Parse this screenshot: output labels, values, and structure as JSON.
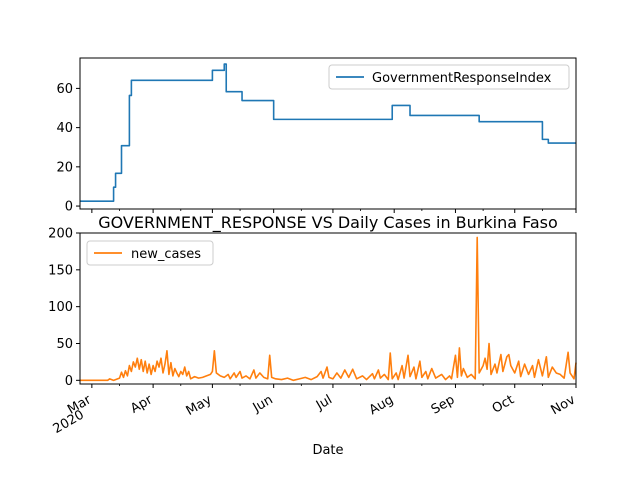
{
  "chart_data": [
    {
      "type": "line",
      "title": "",
      "xlabel": "",
      "ylabel": "",
      "x_range": [
        "2020-02-24",
        "2020-11-01"
      ],
      "ylim": [
        -1.5,
        75.5
      ],
      "yticks": [
        0,
        20,
        40,
        60
      ],
      "grid": false,
      "legend": "upper right",
      "series": [
        {
          "name": "GovernmentResponseIndex",
          "color": "#1f77b4",
          "step": true,
          "points": [
            [
              "2020-02-24",
              2.5
            ],
            [
              "2020-03-12",
              2.5
            ],
            [
              "2020-03-12",
              9.6
            ],
            [
              "2020-03-13",
              9.6
            ],
            [
              "2020-03-13",
              16.7
            ],
            [
              "2020-03-16",
              16.7
            ],
            [
              "2020-03-16",
              30.8
            ],
            [
              "2020-03-20",
              30.8
            ],
            [
              "2020-03-20",
              56.4
            ],
            [
              "2020-03-21",
              56.4
            ],
            [
              "2020-03-21",
              64.1
            ],
            [
              "2020-05-01",
              64.1
            ],
            [
              "2020-05-01",
              69.2
            ],
            [
              "2020-05-07",
              69.2
            ],
            [
              "2020-05-07",
              72.4
            ],
            [
              "2020-05-08",
              72.4
            ],
            [
              "2020-05-08",
              58.3
            ],
            [
              "2020-05-16",
              58.3
            ],
            [
              "2020-05-16",
              53.8
            ],
            [
              "2020-06-01",
              53.8
            ],
            [
              "2020-06-01",
              44.2
            ],
            [
              "2020-07-31",
              44.2
            ],
            [
              "2020-07-31",
              51.3
            ],
            [
              "2020-08-09",
              51.3
            ],
            [
              "2020-08-09",
              46.2
            ],
            [
              "2020-09-13",
              46.2
            ],
            [
              "2020-09-13",
              43.0
            ],
            [
              "2020-10-15",
              43.0
            ],
            [
              "2020-10-15",
              34.0
            ],
            [
              "2020-10-18",
              34.0
            ],
            [
              "2020-10-18",
              32.1
            ],
            [
              "2020-11-01",
              32.1
            ]
          ]
        }
      ]
    },
    {
      "type": "line",
      "title": "GOVERNMENT_RESPONSE VS Daily Cases in Burkina Faso",
      "xlabel": "Date",
      "ylabel": "",
      "x_range": [
        "2020-02-24",
        "2020-11-01"
      ],
      "ylim": [
        -5,
        200
      ],
      "yticks": [
        0,
        50,
        100,
        150,
        200
      ],
      "x_tick_labels": [
        {
          "label": "Mar",
          "year": "2020",
          "date": "2020-03-01"
        },
        {
          "label": "Apr",
          "year": "",
          "date": "2020-04-01"
        },
        {
          "label": "May",
          "year": "",
          "date": "2020-05-01"
        },
        {
          "label": "Jun",
          "year": "",
          "date": "2020-06-01"
        },
        {
          "label": "Jul",
          "year": "",
          "date": "2020-07-01"
        },
        {
          "label": "Aug",
          "year": "",
          "date": "2020-08-01"
        },
        {
          "label": "Sep",
          "year": "",
          "date": "2020-09-01"
        },
        {
          "label": "Oct",
          "year": "",
          "date": "2020-10-01"
        },
        {
          "label": "Nov",
          "year": "",
          "date": "2020-11-01"
        }
      ],
      "grid": false,
      "legend": "upper left",
      "series": [
        {
          "name": "new_cases",
          "color": "#ff7f0e",
          "points": [
            [
              "2020-02-24",
              0
            ],
            [
              "2020-03-09",
              0
            ],
            [
              "2020-03-10",
              2
            ],
            [
              "2020-03-12",
              0
            ],
            [
              "2020-03-13",
              1
            ],
            [
              "2020-03-15",
              3
            ],
            [
              "2020-03-16",
              11
            ],
            [
              "2020-03-17",
              4
            ],
            [
              "2020-03-18",
              13
            ],
            [
              "2020-03-19",
              6
            ],
            [
              "2020-03-20",
              20
            ],
            [
              "2020-03-21",
              12
            ],
            [
              "2020-03-22",
              25
            ],
            [
              "2020-03-23",
              18
            ],
            [
              "2020-03-24",
              30
            ],
            [
              "2020-03-25",
              15
            ],
            [
              "2020-03-26",
              28
            ],
            [
              "2020-03-27",
              12
            ],
            [
              "2020-03-28",
              26
            ],
            [
              "2020-03-29",
              10
            ],
            [
              "2020-03-30",
              22
            ],
            [
              "2020-03-31",
              8
            ],
            [
              "2020-04-01",
              20
            ],
            [
              "2020-04-02",
              12
            ],
            [
              "2020-04-03",
              26
            ],
            [
              "2020-04-04",
              18
            ],
            [
              "2020-04-05",
              30
            ],
            [
              "2020-04-06",
              10
            ],
            [
              "2020-04-07",
              22
            ],
            [
              "2020-04-08",
              40
            ],
            [
              "2020-04-09",
              8
            ],
            [
              "2020-04-10",
              24
            ],
            [
              "2020-04-11",
              6
            ],
            [
              "2020-04-12",
              16
            ],
            [
              "2020-04-13",
              10
            ],
            [
              "2020-04-14",
              5
            ],
            [
              "2020-04-15",
              12
            ],
            [
              "2020-04-16",
              8
            ],
            [
              "2020-04-17",
              18
            ],
            [
              "2020-04-18",
              6
            ],
            [
              "2020-04-19",
              12
            ],
            [
              "2020-04-20",
              2
            ],
            [
              "2020-04-22",
              5
            ],
            [
              "2020-04-24",
              3
            ],
            [
              "2020-04-26",
              4
            ],
            [
              "2020-04-28",
              6
            ],
            [
              "2020-04-30",
              8
            ],
            [
              "2020-05-01",
              12
            ],
            [
              "2020-05-02",
              40
            ],
            [
              "2020-05-03",
              10
            ],
            [
              "2020-05-05",
              6
            ],
            [
              "2020-05-07",
              4
            ],
            [
              "2020-05-09",
              8
            ],
            [
              "2020-05-10",
              2
            ],
            [
              "2020-05-12",
              10
            ],
            [
              "2020-05-13",
              4
            ],
            [
              "2020-05-15",
              12
            ],
            [
              "2020-05-16",
              3
            ],
            [
              "2020-05-18",
              6
            ],
            [
              "2020-05-20",
              2
            ],
            [
              "2020-05-22",
              14
            ],
            [
              "2020-05-23",
              3
            ],
            [
              "2020-05-25",
              10
            ],
            [
              "2020-05-27",
              4
            ],
            [
              "2020-05-29",
              2
            ],
            [
              "2020-05-30",
              34
            ],
            [
              "2020-05-31",
              4
            ],
            [
              "2020-06-02",
              2
            ],
            [
              "2020-06-05",
              1
            ],
            [
              "2020-06-08",
              3
            ],
            [
              "2020-06-11",
              0
            ],
            [
              "2020-06-14",
              2
            ],
            [
              "2020-06-17",
              4
            ],
            [
              "2020-06-20",
              1
            ],
            [
              "2020-06-23",
              5
            ],
            [
              "2020-06-25",
              12
            ],
            [
              "2020-06-26",
              3
            ],
            [
              "2020-06-28",
              18
            ],
            [
              "2020-06-29",
              4
            ],
            [
              "2020-07-01",
              2
            ],
            [
              "2020-07-03",
              10
            ],
            [
              "2020-07-05",
              3
            ],
            [
              "2020-07-07",
              14
            ],
            [
              "2020-07-09",
              4
            ],
            [
              "2020-07-11",
              15
            ],
            [
              "2020-07-13",
              2
            ],
            [
              "2020-07-16",
              6
            ],
            [
              "2020-07-18",
              1
            ],
            [
              "2020-07-21",
              9
            ],
            [
              "2020-07-22",
              2
            ],
            [
              "2020-07-24",
              14
            ],
            [
              "2020-07-25",
              3
            ],
            [
              "2020-07-27",
              8
            ],
            [
              "2020-07-29",
              1
            ],
            [
              "2020-07-30",
              37
            ],
            [
              "2020-07-31",
              2
            ],
            [
              "2020-08-02",
              10
            ],
            [
              "2020-08-03",
              1
            ],
            [
              "2020-08-05",
              20
            ],
            [
              "2020-08-06",
              3
            ],
            [
              "2020-08-08",
              34
            ],
            [
              "2020-08-09",
              5
            ],
            [
              "2020-08-11",
              18
            ],
            [
              "2020-08-12",
              2
            ],
            [
              "2020-08-14",
              26
            ],
            [
              "2020-08-15",
              4
            ],
            [
              "2020-08-17",
              12
            ],
            [
              "2020-08-18",
              2
            ],
            [
              "2020-08-20",
              16
            ],
            [
              "2020-08-22",
              3
            ],
            [
              "2020-08-25",
              8
            ],
            [
              "2020-08-27",
              1
            ],
            [
              "2020-08-29",
              6
            ],
            [
              "2020-08-30",
              2
            ],
            [
              "2020-09-01",
              34
            ],
            [
              "2020-09-02",
              4
            ],
            [
              "2020-09-03",
              44
            ],
            [
              "2020-09-04",
              6
            ],
            [
              "2020-09-05",
              16
            ],
            [
              "2020-09-07",
              4
            ],
            [
              "2020-09-09",
              8
            ],
            [
              "2020-09-11",
              2
            ],
            [
              "2020-09-12",
              194
            ],
            [
              "2020-09-13",
              10
            ],
            [
              "2020-09-15",
              20
            ],
            [
              "2020-09-16",
              30
            ],
            [
              "2020-09-17",
              15
            ],
            [
              "2020-09-18",
              50
            ],
            [
              "2020-09-19",
              8
            ],
            [
              "2020-09-21",
              22
            ],
            [
              "2020-09-22",
              10
            ],
            [
              "2020-09-24",
              35
            ],
            [
              "2020-09-25",
              12
            ],
            [
              "2020-09-27",
              32
            ],
            [
              "2020-09-28",
              35
            ],
            [
              "2020-09-29",
              20
            ],
            [
              "2020-10-01",
              10
            ],
            [
              "2020-10-03",
              26
            ],
            [
              "2020-10-04",
              5
            ],
            [
              "2020-10-06",
              22
            ],
            [
              "2020-10-08",
              8
            ],
            [
              "2020-10-10",
              20
            ],
            [
              "2020-10-11",
              4
            ],
            [
              "2020-10-13",
              28
            ],
            [
              "2020-10-15",
              6
            ],
            [
              "2020-10-17",
              32
            ],
            [
              "2020-10-18",
              4
            ],
            [
              "2020-10-20",
              18
            ],
            [
              "2020-10-22",
              10
            ],
            [
              "2020-10-24",
              8
            ],
            [
              "2020-10-26",
              3
            ],
            [
              "2020-10-28",
              38
            ],
            [
              "2020-10-29",
              10
            ],
            [
              "2020-10-31",
              2
            ],
            [
              "2020-11-01",
              24
            ]
          ]
        }
      ]
    }
  ]
}
